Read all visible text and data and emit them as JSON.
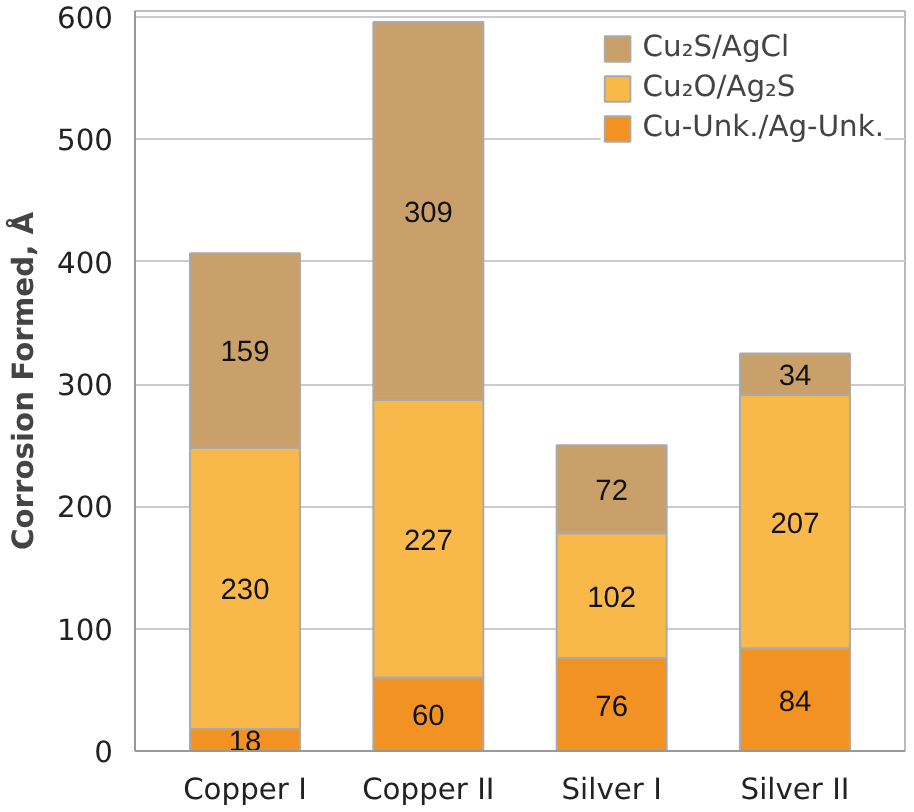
{
  "chart_data": {
    "type": "bar",
    "stacked": true,
    "ylabel": "Corrosion Formed, Å",
    "categories": [
      "Copper I",
      "Copper II",
      "Silver I",
      "Silver II"
    ],
    "series": [
      {
        "name": "Cu-Unk./Ag-Unk.",
        "color": "#f29222",
        "values": [
          18,
          60,
          76,
          84
        ]
      },
      {
        "name": "Cu₂O/Ag₂S",
        "color": "#f9b84a",
        "values": [
          230,
          227,
          102,
          207
        ]
      },
      {
        "name": "Cu₂S/AgCl",
        "color": "#c9a06a",
        "values": [
          159,
          309,
          72,
          34
        ]
      }
    ],
    "ylim": [
      0,
      605
    ],
    "yticks": [
      0,
      100,
      200,
      300,
      400,
      500,
      600
    ],
    "grid": "y",
    "legend": "top right",
    "data_labels": true
  }
}
